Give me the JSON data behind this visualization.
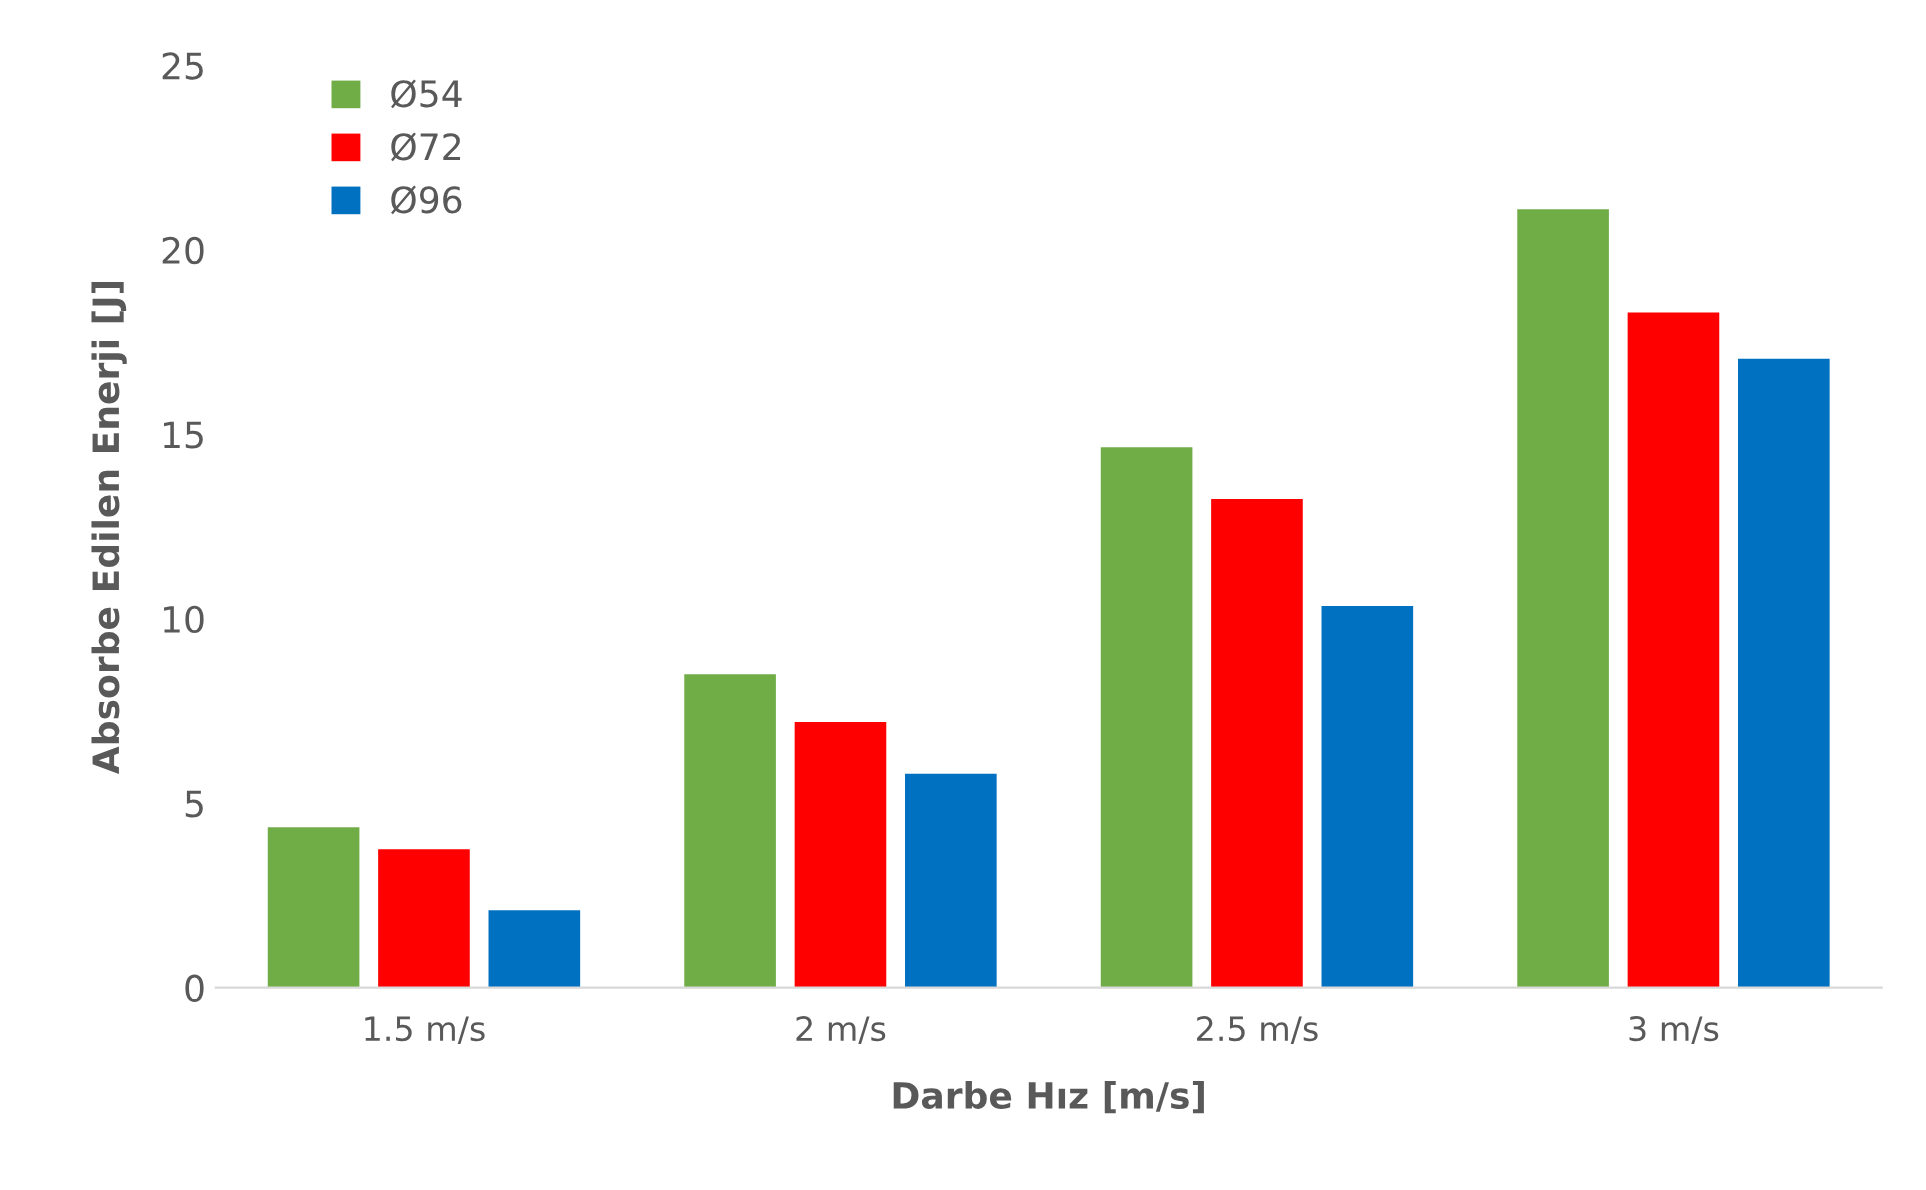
{
  "chart_data": {
    "type": "bar",
    "xlabel": "Darbe Hız [m/s]",
    "ylabel": "Absorbe Edilen Enerji [J]",
    "categories": [
      "1.5 m/s",
      "2 m/s",
      "2.5 m/s",
      "3 m/s"
    ],
    "series": [
      {
        "name": "Ø54",
        "color": "#70ad47",
        "values": [
          4.35,
          8.5,
          14.65,
          21.1
        ]
      },
      {
        "name": "Ø72",
        "color": "#ff0000",
        "values": [
          3.75,
          7.2,
          13.25,
          18.3
        ]
      },
      {
        "name": "Ø96",
        "color": "#0070c0",
        "values": [
          2.1,
          5.8,
          10.35,
          17.05
        ]
      }
    ],
    "ylim": [
      0,
      25
    ],
    "yticks": [
      0,
      5,
      10,
      15,
      20,
      25
    ],
    "grid": false,
    "legend": "top left"
  }
}
